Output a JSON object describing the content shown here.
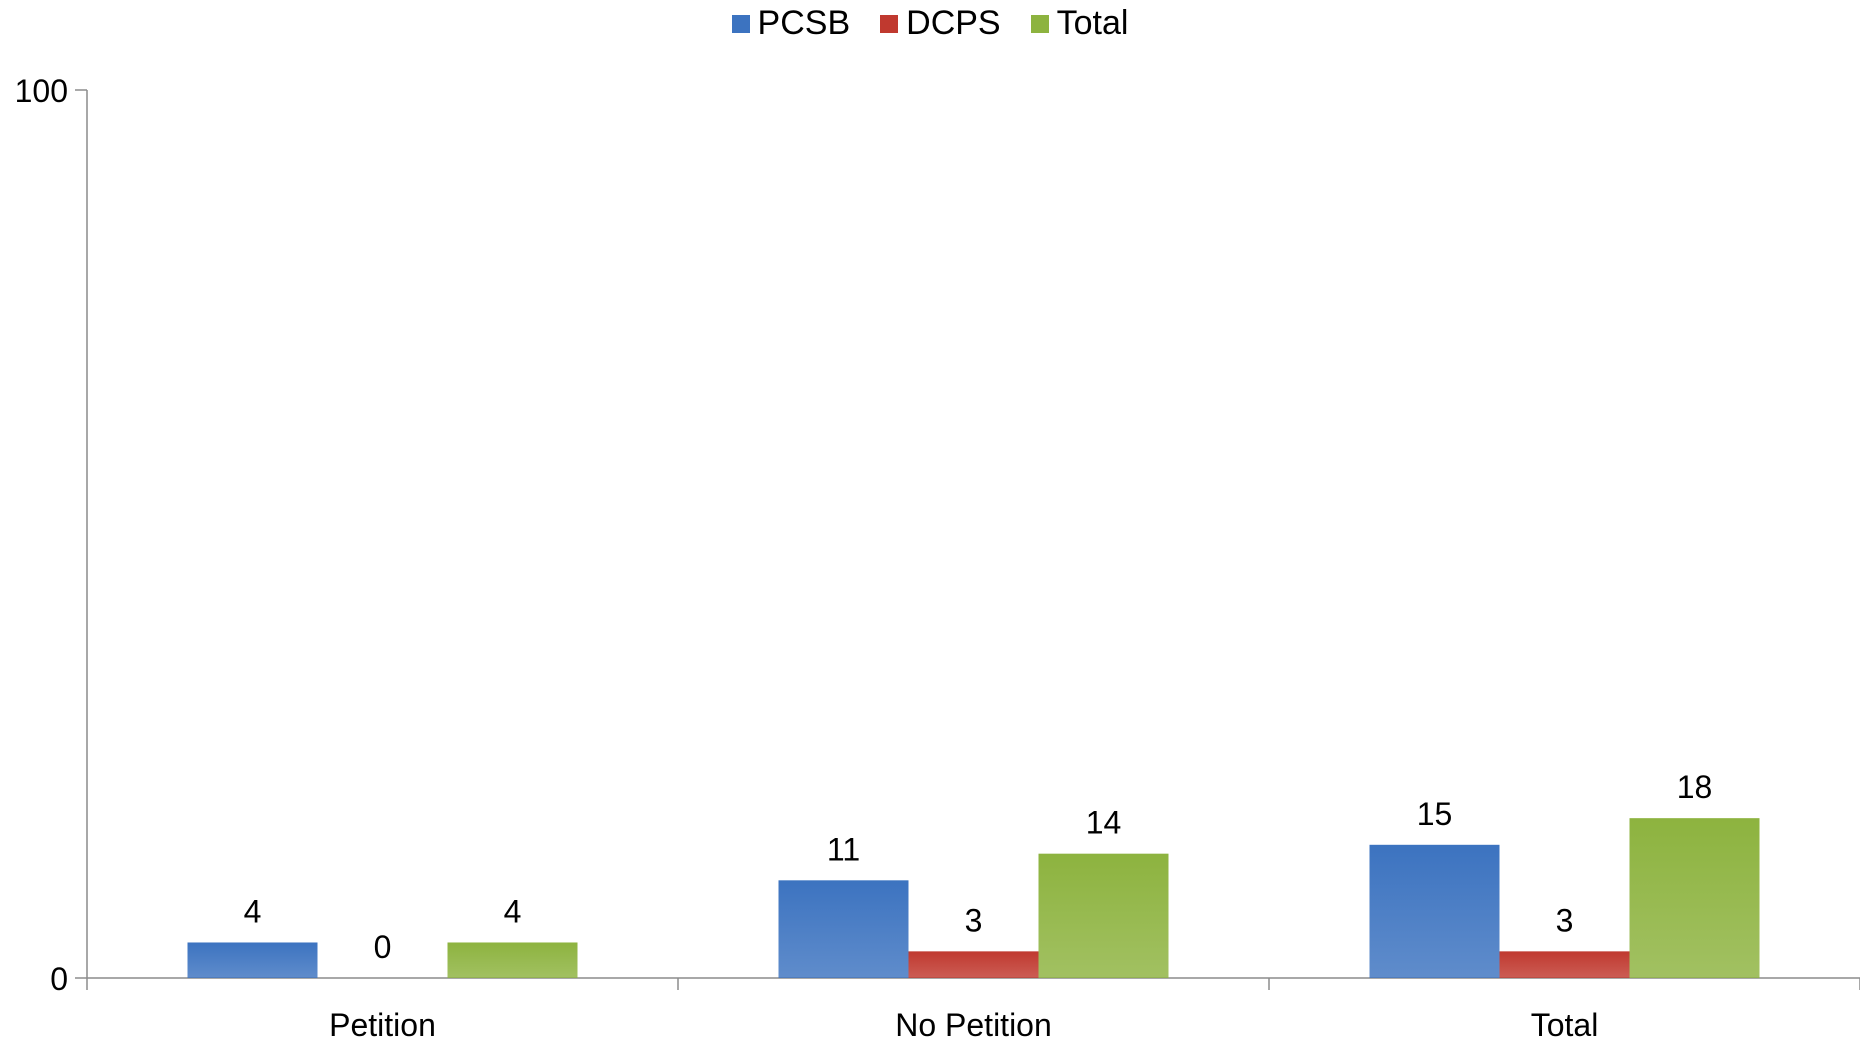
{
  "chart_data": {
    "type": "bar",
    "categories": [
      "Petition",
      "No Petition",
      "Total"
    ],
    "series": [
      {
        "name": "PCSB",
        "values": [
          4,
          11,
          15
        ],
        "color": "#3C73C0"
      },
      {
        "name": "DCPS",
        "values": [
          0,
          3,
          3
        ],
        "color": "#C0392F"
      },
      {
        "name": "Total",
        "values": [
          4,
          14,
          18
        ],
        "color": "#8DB33F"
      }
    ],
    "ylim": [
      0,
      100
    ],
    "yticks": [
      "0",
      "100"
    ],
    "data_labels": true,
    "legend_position": "top-center",
    "grid": false,
    "title": "",
    "xlabel": "",
    "ylabel": ""
  }
}
